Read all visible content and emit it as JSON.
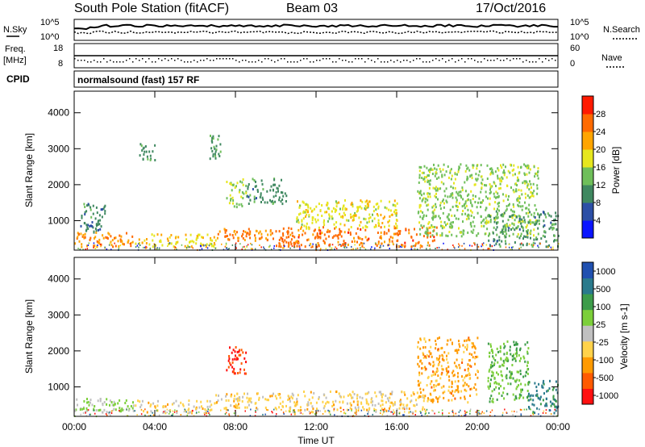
{
  "header": {
    "station": "South Pole Station (fitACF)",
    "beam": "Beam 03",
    "date": "17/Oct/2016"
  },
  "noise_panel": {
    "left_label": "N.Sky",
    "left_ticks": [
      "10^5",
      "10^0"
    ],
    "right_label": "N.Search",
    "right_ticks": [
      "10^5",
      "10^0"
    ]
  },
  "freq_panel": {
    "left_label_1": "Freq.",
    "left_label_2": "[MHz]",
    "left_ticks": [
      "18",
      "8"
    ],
    "right_label": "Nave",
    "right_ticks": [
      "60",
      "0"
    ]
  },
  "cpid": {
    "label": "CPID",
    "text": "normalsound (fast) 157 RF"
  },
  "colors": {
    "power_scale": [
      "#0a14ff",
      "#2c4fa6",
      "#3f8860",
      "#6fbf5a",
      "#e6e61e",
      "#ffa500",
      "#ff6a00",
      "#ff1a00"
    ],
    "velocity_scale": [
      "#ff1010",
      "#ff5a00",
      "#ff9a00",
      "#ffd24a",
      "#c0c0c0",
      "#7ccf3a",
      "#3d9c4a",
      "#2a7a8c",
      "#2050b0"
    ],
    "ground_scatter": "#a0a0a0"
  },
  "chart_data": [
    {
      "type": "heatmap",
      "name": "power",
      "xlabel": "Time UT",
      "ylabel": "Slant Range [km]",
      "x_range_hours": [
        0,
        24
      ],
      "xticks": [
        "00:00",
        "04:00",
        "08:00",
        "12:00",
        "16:00",
        "20:00",
        "00:00"
      ],
      "ylim": [
        180,
        4600
      ],
      "yticks": [
        1000,
        2000,
        3000,
        4000
      ],
      "colorbar": {
        "label": "Power [dB]",
        "ticks": [
          "4",
          "8",
          "12",
          "16",
          "20",
          "24",
          "28"
        ],
        "range": [
          0,
          30
        ]
      },
      "regions": [
        {
          "t": [
            0.0,
            3.0
          ],
          "r": [
            300,
            700
          ],
          "v": 22
        },
        {
          "t": [
            0.3,
            1.5
          ],
          "r": [
            700,
            1500
          ],
          "v": 9
        },
        {
          "t": [
            3.0,
            7.0
          ],
          "r": [
            300,
            650
          ],
          "v": 18
        },
        {
          "t": [
            3.2,
            4.0
          ],
          "r": [
            2700,
            3200
          ],
          "v": 10
        },
        {
          "t": [
            6.7,
            7.3
          ],
          "r": [
            2700,
            3400
          ],
          "v": 10
        },
        {
          "t": [
            7.0,
            10.0
          ],
          "r": [
            450,
            800
          ],
          "v": 22
        },
        {
          "t": [
            7.5,
            8.5
          ],
          "r": [
            1400,
            2200
          ],
          "v": 15
        },
        {
          "t": [
            8.5,
            10.5
          ],
          "r": [
            1500,
            2200
          ],
          "v": 10
        },
        {
          "t": [
            10.0,
            18.0
          ],
          "r": [
            300,
            850
          ],
          "v": 24
        },
        {
          "t": [
            11.0,
            16.0
          ],
          "r": [
            800,
            1600
          ],
          "v": 17
        },
        {
          "t": [
            17.0,
            23.0
          ],
          "r": [
            600,
            2600
          ],
          "v": 14
        },
        {
          "t": [
            20.5,
            24.0
          ],
          "r": [
            300,
            1300
          ],
          "v": 10
        }
      ]
    },
    {
      "type": "heatmap",
      "name": "velocity",
      "xlabel": "Time UT",
      "ylabel": "Slant Range [km]",
      "x_range_hours": [
        0,
        24
      ],
      "xticks": [
        "00:00",
        "04:00",
        "08:00",
        "12:00",
        "16:00",
        "20:00",
        "00:00"
      ],
      "ylim": [
        180,
        4600
      ],
      "yticks": [
        1000,
        2000,
        3000,
        4000
      ],
      "colorbar": {
        "label": "Velocity [m s-1]",
        "ticks": [
          "1000",
          "500",
          "100",
          "25",
          "-25",
          "-100",
          "-500",
          "-1000"
        ],
        "range": [
          -1000,
          1000
        ]
      },
      "regions": [
        {
          "t": [
            0.0,
            3.0
          ],
          "r": [
            300,
            700
          ],
          "v": 100
        },
        {
          "t": [
            3.0,
            7.0
          ],
          "r": [
            300,
            650
          ],
          "v": -200
        },
        {
          "t": [
            7.5,
            8.5
          ],
          "r": [
            1400,
            2200
          ],
          "v": -800
        },
        {
          "t": [
            7.0,
            10.5
          ],
          "r": [
            400,
            850
          ],
          "v": -200
        },
        {
          "t": [
            10.5,
            17.5
          ],
          "r": [
            300,
            900
          ],
          "v": -200
        },
        {
          "t": [
            17.0,
            20.0
          ],
          "r": [
            600,
            2400
          ],
          "v": -400
        },
        {
          "t": [
            20.5,
            22.5
          ],
          "r": [
            600,
            2300
          ],
          "v": 300
        },
        {
          "t": [
            22.5,
            24.0
          ],
          "r": [
            300,
            1200
          ],
          "v": 600
        }
      ]
    }
  ]
}
